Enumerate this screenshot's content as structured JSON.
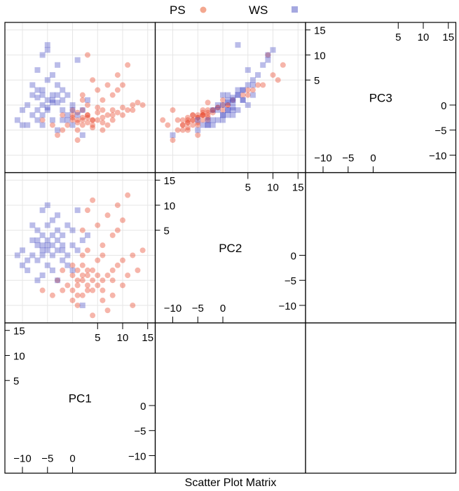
{
  "chart_data": {
    "type": "scatter",
    "subtype": "scatter-plot-matrix",
    "title": "Scatter Plot Matrix",
    "variables": [
      "PC1",
      "PC2",
      "PC3"
    ],
    "range": [
      -13.5,
      16.5
    ],
    "ticks": [
      -10,
      -5,
      0,
      5,
      10,
      15
    ],
    "tick_labels": [
      "−10",
      "−5",
      "0",
      "5",
      "10",
      "15"
    ],
    "grid": true,
    "legend": {
      "placement": "top",
      "entries": [
        {
          "name": "PS",
          "marker": "circle",
          "color": "#e8452a"
        },
        {
          "name": "WS",
          "marker": "square",
          "color": "#3a40c0"
        }
      ]
    },
    "series": [
      {
        "name": "PS",
        "marker": "circle",
        "color": "#e8452a",
        "columns": [
          "PC1",
          "PC2",
          "PC3"
        ],
        "points": [
          [
            1,
            -6,
            -3
          ],
          [
            2,
            -5,
            -2.5
          ],
          [
            3,
            -7,
            -3.5
          ],
          [
            0,
            -4,
            -2
          ],
          [
            4,
            -3,
            -3
          ],
          [
            2,
            -8,
            -4
          ],
          [
            5,
            -6,
            -3
          ],
          [
            1,
            -3,
            -1.5
          ],
          [
            3,
            -4,
            -2
          ],
          [
            6,
            -5,
            -2.5
          ],
          [
            -1,
            -6,
            -4
          ],
          [
            0,
            -9,
            -3
          ],
          [
            2,
            -2,
            -1
          ],
          [
            4,
            -7,
            -4.5
          ],
          [
            7,
            -4,
            -2
          ],
          [
            8,
            -3,
            -1
          ],
          [
            9,
            -2,
            -1.5
          ],
          [
            10,
            -1,
            -0.5
          ],
          [
            12,
            0,
            0
          ],
          [
            14,
            1,
            0
          ],
          [
            6,
            2,
            1
          ],
          [
            8,
            4,
            2
          ],
          [
            5,
            6,
            3
          ],
          [
            7,
            8,
            4
          ],
          [
            9,
            10,
            6
          ],
          [
            11,
            12,
            8
          ],
          [
            3,
            9,
            10
          ],
          [
            4,
            11,
            5
          ],
          [
            2,
            5,
            2
          ],
          [
            -2,
            -7,
            -5
          ],
          [
            -3,
            -5,
            -6
          ],
          [
            1,
            -10,
            -7
          ],
          [
            6,
            -9,
            -5
          ],
          [
            8,
            -8,
            -3
          ],
          [
            10,
            -6,
            -2
          ],
          [
            11,
            -4,
            -1
          ],
          [
            12,
            -10,
            -1
          ],
          [
            13,
            -3,
            0.5
          ],
          [
            9,
            5,
            3
          ],
          [
            5,
            -1,
            -0.5
          ],
          [
            3,
            1,
            0
          ],
          [
            0,
            -2,
            -1
          ],
          [
            -4,
            -8,
            -4
          ],
          [
            -6,
            -7,
            -3
          ],
          [
            -2,
            -3,
            -2
          ],
          [
            7,
            -11,
            -4
          ],
          [
            4,
            -12,
            -3
          ],
          [
            2,
            0,
            1
          ],
          [
            6,
            0,
            -1
          ],
          [
            10,
            7,
            4
          ],
          [
            1,
            -5,
            -3.5
          ],
          [
            3,
            -6,
            -2
          ],
          [
            2,
            -4,
            -3
          ],
          [
            4,
            -5,
            -4
          ],
          [
            0,
            -7,
            -2.5
          ],
          [
            5,
            -4,
            -1.5
          ],
          [
            6,
            -7,
            -3.5
          ],
          [
            3,
            -3,
            -2.5
          ],
          [
            1,
            -8,
            -5
          ],
          [
            8,
            -5,
            -2
          ]
        ]
      },
      {
        "name": "WS",
        "marker": "square",
        "color": "#3a40c0",
        "columns": [
          "PC1",
          "PC2",
          "PC3"
        ],
        "points": [
          [
            -6,
            0,
            0
          ],
          [
            -5,
            1,
            1
          ],
          [
            -7,
            -1,
            -1
          ],
          [
            -4,
            2,
            0.5
          ],
          [
            -8,
            0,
            -2
          ],
          [
            -3,
            3,
            2
          ],
          [
            -5,
            -2,
            -1
          ],
          [
            -6,
            4,
            3
          ],
          [
            -2,
            1,
            -1
          ],
          [
            -9,
            -1,
            0
          ],
          [
            -4,
            -3,
            -3
          ],
          [
            -7,
            2,
            1.5
          ],
          [
            -3,
            5,
            4
          ],
          [
            -1,
            0,
            -2
          ],
          [
            -5,
            6,
            5
          ],
          [
            -8,
            3,
            2
          ],
          [
            -10,
            1,
            -1
          ],
          [
            -6,
            -4,
            -4
          ],
          [
            -2,
            -1,
            -3
          ],
          [
            0,
            2,
            -1
          ],
          [
            -4,
            7,
            6
          ],
          [
            -3,
            8,
            8
          ],
          [
            -6,
            9,
            10
          ],
          [
            -5,
            3,
            12
          ],
          [
            -9,
            -3,
            -4
          ],
          [
            -10,
            -2,
            -4
          ],
          [
            -7,
            5,
            7
          ],
          [
            -2,
            4,
            3
          ],
          [
            1,
            1,
            -2
          ],
          [
            2,
            3,
            -1
          ],
          [
            -1,
            6,
            2
          ],
          [
            0,
            -3,
            -4
          ],
          [
            -8,
            6,
            4
          ],
          [
            -4,
            0,
            2
          ],
          [
            -6,
            2,
            -2
          ],
          [
            -3,
            -5,
            -5
          ],
          [
            3,
            4,
            1
          ],
          [
            1,
            9,
            9
          ],
          [
            -11,
            0,
            -3
          ],
          [
            -7,
            -5,
            -3
          ],
          [
            -5,
            10,
            11
          ],
          [
            2,
            -10,
            -6
          ],
          [
            0,
            5,
            0
          ],
          [
            -1,
            -2,
            -3
          ],
          [
            -4,
            4,
            1
          ],
          [
            -5,
            2,
            -0.5
          ],
          [
            -3,
            1,
            0.5
          ],
          [
            -7,
            3,
            3
          ],
          [
            -2,
            2,
            1
          ],
          [
            -6,
            1,
            2
          ]
        ]
      }
    ]
  }
}
